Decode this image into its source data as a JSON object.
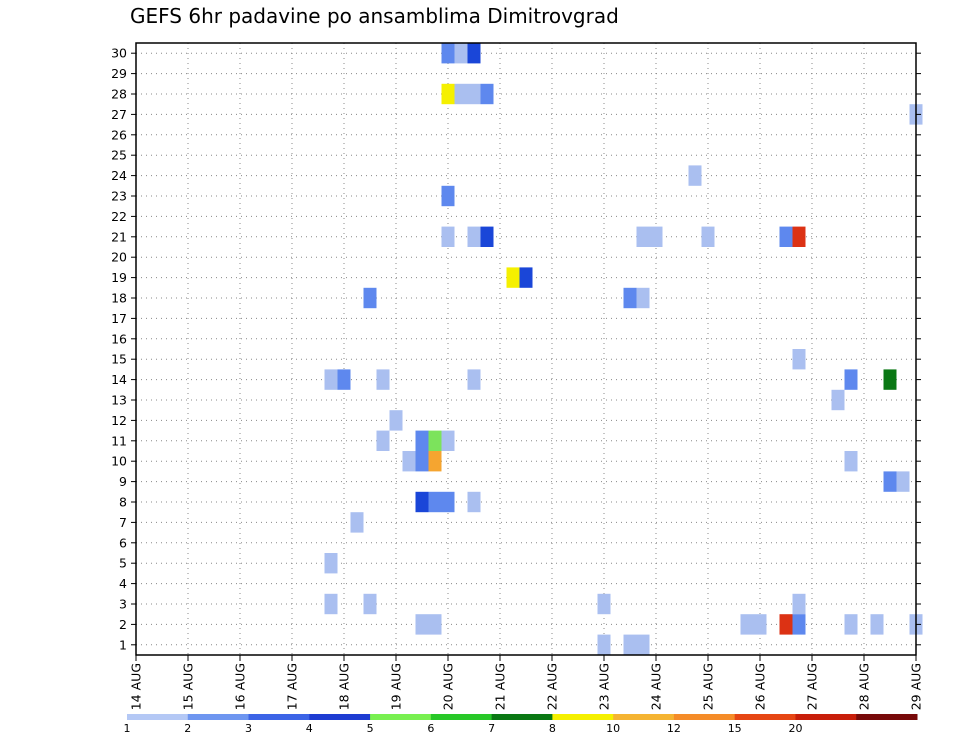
{
  "chart_data": {
    "type": "heatmap",
    "title": "GEFS 6hr padavine po ansamblima Dimitrovgrad",
    "x_tick_labels": [
      "14 AUG",
      "15 AUG",
      "16 AUG",
      "17 AUG",
      "18 AUG",
      "19 AUG",
      "20 AUG",
      "21 AUG",
      "22 AUG",
      "23 AUG",
      "24 AUG",
      "25 AUG",
      "26 AUG",
      "27 AUG",
      "28 AUG",
      "29 AUG"
    ],
    "y_tick_labels": [
      "1",
      "2",
      "3",
      "4",
      "5",
      "6",
      "7",
      "8",
      "9",
      "10",
      "11",
      "12",
      "13",
      "14",
      "15",
      "16",
      "17",
      "18",
      "19",
      "20",
      "21",
      "22",
      "23",
      "24",
      "25",
      "26",
      "27",
      "28",
      "29",
      "30"
    ],
    "grid": true,
    "legend_placement": "bottom",
    "legend_labels": [
      "1",
      "2",
      "3",
      "4",
      "5",
      "6",
      "7",
      "8",
      "10",
      "12",
      "15",
      "20"
    ],
    "legend_colors": [
      "#b4c8f5",
      "#6e96f0",
      "#3c64e6",
      "#1e3cd2",
      "#78f050",
      "#28c828",
      "#0a7814",
      "#f5f000",
      "#f5b432",
      "#f58c28",
      "#e64614",
      "#c81e0a",
      "#780a0a"
    ],
    "colors": {
      "c1": "#aabff0",
      "c2": "#5e88ee",
      "c3": "#1a46d8",
      "green_light": "#7ce35c",
      "green_dark": "#0a7814",
      "yellow": "#f5f000",
      "orange": "#f5a530",
      "red": "#dc3214"
    },
    "cells": [
      {
        "member": 30,
        "t": "20.0",
        "color": "#5e88ee"
      },
      {
        "member": 30,
        "t": "20.25",
        "color": "#aabff0"
      },
      {
        "member": 30,
        "t": "20.5",
        "color": "#1a46d8"
      },
      {
        "member": 28,
        "t": "20.0",
        "color": "#f5f000"
      },
      {
        "member": 28,
        "t": "20.25",
        "color": "#aabff0"
      },
      {
        "member": 28,
        "t": "20.5",
        "color": "#aabff0"
      },
      {
        "member": 28,
        "t": "20.75",
        "color": "#5e88ee"
      },
      {
        "member": 27,
        "t": "29.0",
        "color": "#aabff0"
      },
      {
        "member": 24,
        "t": "24.75",
        "color": "#aabff0"
      },
      {
        "member": 23,
        "t": "20.0",
        "color": "#5e88ee"
      },
      {
        "member": 21,
        "t": "20.0",
        "color": "#aabff0"
      },
      {
        "member": 21,
        "t": "20.5",
        "color": "#aabff0"
      },
      {
        "member": 21,
        "t": "20.75",
        "color": "#1a46d8"
      },
      {
        "member": 21,
        "t": "23.75",
        "color": "#aabff0"
      },
      {
        "member": 21,
        "t": "24.0",
        "color": "#aabff0"
      },
      {
        "member": 21,
        "t": "25.0",
        "color": "#aabff0"
      },
      {
        "member": 21,
        "t": "26.5",
        "color": "#5e88ee"
      },
      {
        "member": 21,
        "t": "26.75",
        "color": "#dc3214"
      },
      {
        "member": 19,
        "t": "21.25",
        "color": "#f5f000"
      },
      {
        "member": 19,
        "t": "21.5",
        "color": "#1a46d8"
      },
      {
        "member": 18,
        "t": "18.5",
        "color": "#5e88ee"
      },
      {
        "member": 18,
        "t": "23.5",
        "color": "#5e88ee"
      },
      {
        "member": 18,
        "t": "23.75",
        "color": "#aabff0"
      },
      {
        "member": 15,
        "t": "26.75",
        "color": "#aabff0"
      },
      {
        "member": 14,
        "t": "17.75",
        "color": "#aabff0"
      },
      {
        "member": 14,
        "t": "18.0",
        "color": "#5e88ee"
      },
      {
        "member": 14,
        "t": "18.75",
        "color": "#aabff0"
      },
      {
        "member": 14,
        "t": "20.5",
        "color": "#aabff0"
      },
      {
        "member": 14,
        "t": "27.75",
        "color": "#5e88ee"
      },
      {
        "member": 14,
        "t": "28.5",
        "color": "#0a7814"
      },
      {
        "member": 13,
        "t": "27.5",
        "color": "#aabff0"
      },
      {
        "member": 12,
        "t": "19.0",
        "color": "#aabff0"
      },
      {
        "member": 11,
        "t": "18.75",
        "color": "#aabff0"
      },
      {
        "member": 11,
        "t": "19.5",
        "color": "#5e88ee"
      },
      {
        "member": 11,
        "t": "19.75",
        "color": "#7ce35c"
      },
      {
        "member": 11,
        "t": "20.0",
        "color": "#aabff0"
      },
      {
        "member": 10,
        "t": "19.25",
        "color": "#aabff0"
      },
      {
        "member": 10,
        "t": "19.5",
        "color": "#5e88ee"
      },
      {
        "member": 10,
        "t": "19.75",
        "color": "#f5a530"
      },
      {
        "member": 10,
        "t": "27.75",
        "color": "#aabff0"
      },
      {
        "member": 9,
        "t": "28.5",
        "color": "#5e88ee"
      },
      {
        "member": 9,
        "t": "28.75",
        "color": "#aabff0"
      },
      {
        "member": 8,
        "t": "19.5",
        "color": "#1a46d8"
      },
      {
        "member": 8,
        "t": "19.75",
        "color": "#5e88ee"
      },
      {
        "member": 8,
        "t": "20.0",
        "color": "#5e88ee"
      },
      {
        "member": 8,
        "t": "20.5",
        "color": "#aabff0"
      },
      {
        "member": 7,
        "t": "18.25",
        "color": "#aabff0"
      },
      {
        "member": 5,
        "t": "17.75",
        "color": "#aabff0"
      },
      {
        "member": 3,
        "t": "17.75",
        "color": "#aabff0"
      },
      {
        "member": 3,
        "t": "18.5",
        "color": "#aabff0"
      },
      {
        "member": 3,
        "t": "23.0",
        "color": "#aabff0"
      },
      {
        "member": 3,
        "t": "26.75",
        "color": "#aabff0"
      },
      {
        "member": 2,
        "t": "19.5",
        "color": "#aabff0"
      },
      {
        "member": 2,
        "t": "19.75",
        "color": "#aabff0"
      },
      {
        "member": 2,
        "t": "25.75",
        "color": "#aabff0"
      },
      {
        "member": 2,
        "t": "26.0",
        "color": "#aabff0"
      },
      {
        "member": 2,
        "t": "26.5",
        "color": "#dc3214"
      },
      {
        "member": 2,
        "t": "26.75",
        "color": "#5e88ee"
      },
      {
        "member": 2,
        "t": "27.75",
        "color": "#aabff0"
      },
      {
        "member": 2,
        "t": "28.25",
        "color": "#aabff0"
      },
      {
        "member": 2,
        "t": "29.0",
        "color": "#aabff0"
      },
      {
        "member": 1,
        "t": "23.0",
        "color": "#aabff0"
      },
      {
        "member": 1,
        "t": "23.5",
        "color": "#aabff0"
      },
      {
        "member": 1,
        "t": "23.75",
        "color": "#aabff0"
      }
    ]
  }
}
